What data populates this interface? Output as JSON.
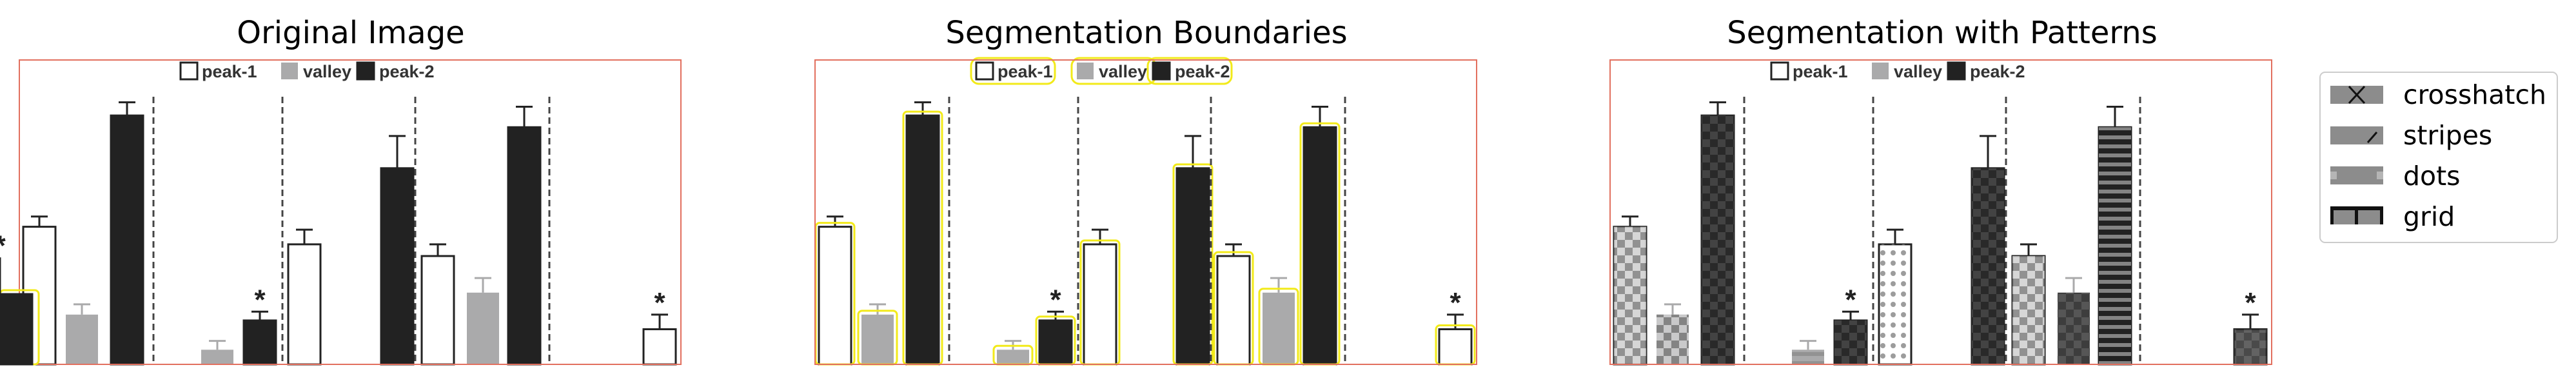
{
  "panels": [
    {
      "title": "Original Image",
      "overlay": "none"
    },
    {
      "title": "Segmentation Boundaries",
      "overlay": "boundaries"
    },
    {
      "title": "Segmentation with Patterns",
      "overlay": "patterns"
    }
  ],
  "colors": {
    "peak-1": "#ffffff",
    "valley": "#aaaaab",
    "peak-2": "#222222",
    "frame": "#e2705f",
    "boundary": "#f2ea1a",
    "divider": "#444444"
  },
  "chart_data": {
    "type": "bar",
    "title": "",
    "xlabel": "",
    "ylabel": "",
    "ylim": [
      0,
      100
    ],
    "legend": {
      "placement": "top-center",
      "entries": [
        "peak-1",
        "valley",
        "peak-2"
      ]
    },
    "groups": [
      {
        "bars": [
          {
            "series": "peak-1",
            "value": 47,
            "err": 3.5
          },
          {
            "series": "valley",
            "value": 17,
            "err": 3.5
          },
          {
            "series": "peak-2",
            "value": 85,
            "err": 4.5
          }
        ]
      },
      {
        "bars": [
          {
            "series": "valley",
            "value": 5,
            "err": 3
          },
          {
            "series": "peak-2",
            "value": 15,
            "err": 3,
            "star": "*"
          }
        ]
      },
      {
        "bars": [
          {
            "series": "peak-1",
            "value": 41,
            "err": 5
          },
          {
            "series": "peak-2",
            "value": 67,
            "err": 11
          }
        ]
      },
      {
        "bars": [
          {
            "series": "peak-1",
            "value": 37,
            "err": 4
          },
          {
            "series": "valley",
            "value": 24.5,
            "err": 5
          },
          {
            "series": "peak-2",
            "value": 81,
            "err": 7
          },
          {
            "series": "peak-1",
            "value": 12,
            "err": 5,
            "star": "*"
          }
        ]
      },
      {
        "bars": [
          {
            "series": "peak-2",
            "value": 24,
            "err": 12.5,
            "star": "*"
          }
        ]
      }
    ]
  },
  "pattern_legend": {
    "placement": "right",
    "entries": [
      {
        "label": "crosshatch",
        "icon": "crosshatch-icon"
      },
      {
        "label": "stripes",
        "icon": "stripes-icon"
      },
      {
        "label": "dots",
        "icon": "dots-icon"
      },
      {
        "label": "grid",
        "icon": "grid-icon"
      }
    ]
  }
}
